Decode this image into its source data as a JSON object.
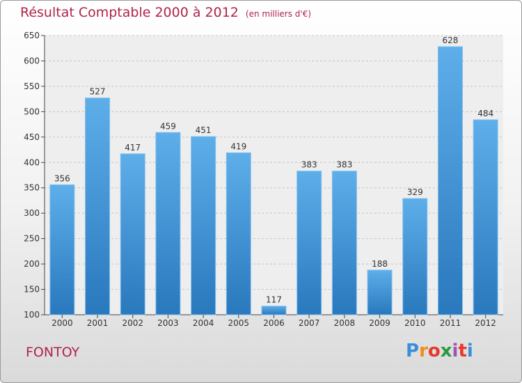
{
  "chart_data": {
    "type": "bar",
    "title": "Résultat Comptable 2000 à 2012",
    "subtitle": "(en milliers d'€)",
    "categories": [
      "2000",
      "2001",
      "2002",
      "2003",
      "2004",
      "2005",
      "2006",
      "2007",
      "2008",
      "2009",
      "2010",
      "2011",
      "2012"
    ],
    "values": [
      356,
      527,
      417,
      459,
      451,
      419,
      117,
      383,
      383,
      188,
      329,
      628,
      484
    ],
    "ylim": [
      100,
      650
    ],
    "yticks": [
      100,
      150,
      200,
      250,
      300,
      350,
      400,
      450,
      500,
      550,
      600,
      650
    ],
    "grid": true,
    "bar_color": "#3d90d6"
  },
  "place": "FONTOY",
  "logo": {
    "letters": [
      "P",
      "r",
      "o",
      "x",
      "i",
      "t",
      "i"
    ],
    "colors": [
      "#3b8ed8",
      "#f28c1e",
      "#e8392a",
      "#2a9a3f",
      "#9a55b5",
      "#e8392a",
      "#3b8ed8"
    ]
  }
}
